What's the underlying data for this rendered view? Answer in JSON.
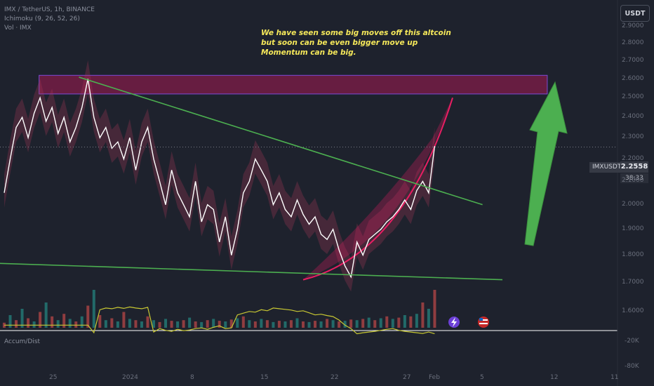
{
  "legend": {
    "line1": "IMX / TetherUS, 1h, BINANCE",
    "line2": "Ichimoku (9, 26, 52, 26)",
    "line3": "Vol · IMX"
  },
  "annotation": {
    "line1": "We have seen some big moves off this altcoin",
    "line2": "but soon can be even bigger move up",
    "line3": "Momentum can be big."
  },
  "currency_button": "USDT",
  "symbol_label": "IMXUSDT",
  "last_price": "2.2558",
  "countdown": "38:33",
  "indicator_label": "Accum/Dist",
  "colors": {
    "background": "#1e222d",
    "price_line": "#ffffff",
    "resistance_zone": "#c2185b",
    "trendline": "#4caf50",
    "arrow": "#4caf50",
    "curve": "#e91e63",
    "ad_line": "#c8c832",
    "annotation_text": "#f5e85a"
  },
  "icons": [
    "lightning-icon",
    "us-flag-icon"
  ],
  "chart_data": {
    "type": "line",
    "y_scale": "log",
    "y_ticks": [
      "2.9000",
      "2.8000",
      "2.7000",
      "2.6000",
      "2.5000",
      "2.4000",
      "2.3000",
      "2.2000",
      "2.1000",
      "2.0000",
      "1.9000",
      "1.8000",
      "1.7000",
      "1.6000"
    ],
    "x_ticks": [
      "25",
      "2024",
      "8",
      "15",
      "22",
      "27",
      "Feb",
      "5",
      "12",
      "11"
    ],
    "ad_ticks": [
      "-20K",
      "-80K"
    ],
    "price_series": {
      "x_days": [
        0,
        0.6,
        1.2,
        1.8,
        2.4,
        3,
        3.6,
        4.2,
        4.8,
        5.4,
        6,
        6.6,
        7.2,
        7.8,
        8.4,
        9,
        9.6,
        10.2,
        10.8,
        11.4,
        12,
        12.6,
        13.2,
        13.8,
        14.4,
        15,
        15.6,
        16.2,
        16.8,
        17.4,
        18,
        18.6,
        19.2,
        19.8,
        20.4,
        21,
        21.6,
        22.2,
        22.8,
        23.4,
        24,
        24.6,
        25.2,
        25.8,
        26.4,
        27,
        27.6,
        28.2,
        28.8,
        29.4,
        30,
        30.6,
        31.2,
        31.8,
        32.4,
        33,
        33.6,
        34.2,
        34.8,
        35.4,
        36,
        36.6,
        37.2,
        37.8,
        38.4,
        39,
        39.6,
        40.2,
        40.8,
        41.4,
        42,
        42.6,
        43.2
      ],
      "close": [
        2.05,
        2.2,
        2.35,
        2.4,
        2.3,
        2.42,
        2.5,
        2.38,
        2.45,
        2.32,
        2.4,
        2.28,
        2.35,
        2.45,
        2.6,
        2.4,
        2.3,
        2.35,
        2.25,
        2.28,
        2.2,
        2.3,
        2.15,
        2.28,
        2.35,
        2.2,
        2.1,
        2.0,
        2.15,
        2.05,
        2.0,
        1.95,
        2.1,
        1.93,
        2.0,
        1.98,
        1.85,
        1.95,
        1.8,
        1.9,
        2.05,
        2.1,
        2.2,
        2.15,
        2.1,
        2.0,
        2.05,
        1.98,
        1.95,
        2.02,
        1.96,
        1.92,
        1.95,
        1.88,
        1.86,
        1.9,
        1.82,
        1.76,
        1.72,
        1.85,
        1.8,
        1.86,
        1.88,
        1.9,
        1.93,
        1.95,
        1.98,
        2.02,
        1.98,
        2.06,
        2.1,
        2.05,
        2.26
      ]
    },
    "resistance_zone": {
      "low": 2.52,
      "high": 2.62,
      "x_start_day": 3.5,
      "x_end_day": 54.5
    },
    "upper_trendline": {
      "points": [
        [
          7.5,
          2.61
        ],
        [
          48,
          2.0
        ]
      ]
    },
    "lower_trendline": {
      "points": [
        [
          -1,
          1.77
        ],
        [
          50,
          1.71
        ]
      ]
    },
    "momentum_curve": {
      "points": [
        [
          30,
          1.71
        ],
        [
          35,
          1.77
        ],
        [
          40,
          1.9
        ],
        [
          43,
          2.1
        ],
        [
          45,
          2.5
        ]
      ]
    },
    "volume": [
      8,
      20,
      12,
      30,
      15,
      10,
      25,
      40,
      18,
      12,
      22,
      14,
      10,
      18,
      35,
      60,
      20,
      12,
      15,
      10,
      25,
      14,
      12,
      10,
      18,
      12,
      9,
      14,
      11,
      10,
      12,
      16,
      10,
      9,
      12,
      14,
      11,
      10,
      13,
      15,
      18,
      12,
      10,
      14,
      12,
      9,
      11,
      10,
      12,
      15,
      10,
      9,
      11,
      10,
      14,
      12,
      10,
      11,
      13,
      12,
      14,
      16,
      12,
      15,
      18,
      14,
      16,
      20,
      18,
      22,
      40,
      30,
      60
    ],
    "accum_dist": [
      -30,
      -30,
      -30,
      -30,
      -30,
      -30,
      -30,
      -30,
      -30,
      -30,
      -30,
      -30,
      -30,
      -30,
      -30,
      -8,
      -75,
      -80,
      -78,
      -82,
      -79,
      -83,
      -80,
      -78,
      -82,
      -10,
      -20,
      -15,
      -12,
      -18,
      -14,
      -16,
      -20,
      -22,
      -18,
      -24,
      -28,
      -20,
      -22,
      -60,
      -65,
      -70,
      -68,
      -75,
      -72,
      -80,
      -78,
      -76,
      -74,
      -70,
      -72,
      -66,
      -60,
      -62,
      -58,
      -55,
      -45,
      -30,
      -20,
      -5,
      -8,
      -10,
      -12,
      -15,
      -18,
      -20,
      -15,
      -12,
      -10,
      -8,
      -6,
      -10,
      -5
    ]
  }
}
